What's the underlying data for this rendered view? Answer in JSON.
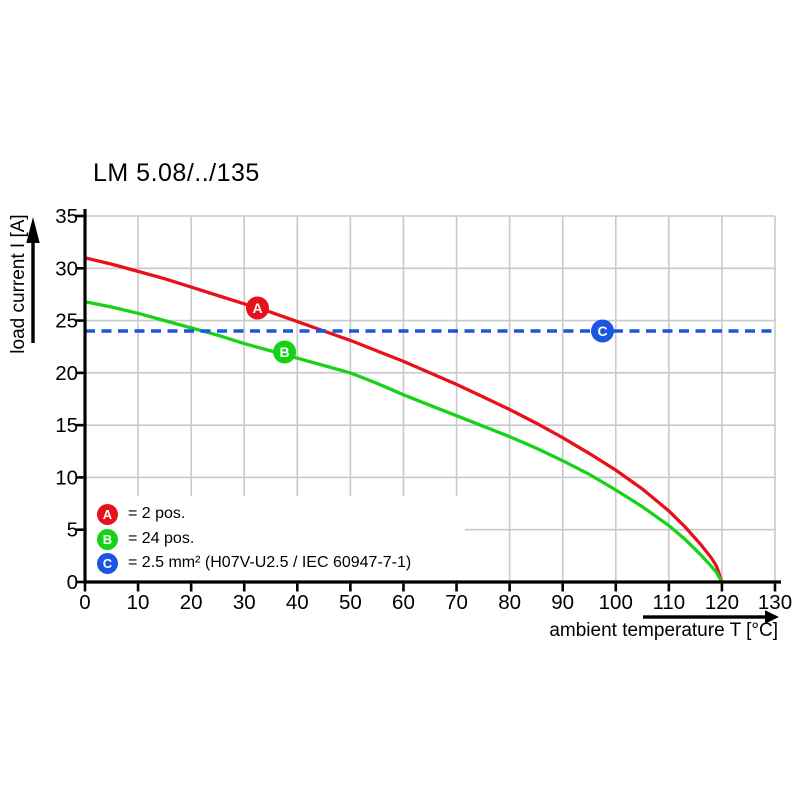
{
  "chart_data": {
    "type": "line",
    "title": "LM 5.08/../135",
    "xlabel": "ambient temperature T [°C]",
    "ylabel": "load current I [A]",
    "xlim": [
      0,
      130
    ],
    "ylim": [
      0,
      35
    ],
    "x_ticks": [
      0,
      10,
      20,
      30,
      40,
      50,
      60,
      70,
      80,
      90,
      100,
      110,
      120,
      130
    ],
    "y_ticks": [
      0,
      5,
      10,
      15,
      20,
      25,
      30,
      35
    ],
    "grid": true,
    "legend_position": "inside-bottom-left",
    "axis_color": "#000000",
    "grid_color": "#c9c9c9",
    "series": [
      {
        "id": "A",
        "name": "2 pos.",
        "color": "#e8111b",
        "line_style": "solid",
        "marker": {
          "letter": "A",
          "x": 32.5,
          "y": 26.2
        },
        "points": [
          [
            0,
            31.0
          ],
          [
            5,
            30.4
          ],
          [
            10,
            29.7
          ],
          [
            15,
            29.0
          ],
          [
            20,
            28.2
          ],
          [
            25,
            27.4
          ],
          [
            30,
            26.6
          ],
          [
            35,
            25.8
          ],
          [
            40,
            24.9
          ],
          [
            45,
            24.0
          ],
          [
            50,
            23.1
          ],
          [
            55,
            22.1
          ],
          [
            60,
            21.1
          ],
          [
            65,
            20.0
          ],
          [
            70,
            18.9
          ],
          [
            75,
            17.7
          ],
          [
            80,
            16.5
          ],
          [
            85,
            15.2
          ],
          [
            90,
            13.8
          ],
          [
            95,
            12.3
          ],
          [
            100,
            10.7
          ],
          [
            105,
            8.9
          ],
          [
            110,
            6.8
          ],
          [
            113,
            5.3
          ],
          [
            116,
            3.6
          ],
          [
            118,
            2.3
          ],
          [
            119,
            1.5
          ],
          [
            120,
            0
          ]
        ]
      },
      {
        "id": "B",
        "name": "24 pos.",
        "color": "#17d317",
        "line_style": "solid",
        "marker": {
          "letter": "B",
          "x": 37.6,
          "y": 22.0
        },
        "points": [
          [
            0,
            26.8
          ],
          [
            5,
            26.3
          ],
          [
            10,
            25.7
          ],
          [
            15,
            25.0
          ],
          [
            20,
            24.3
          ],
          [
            25,
            23.6
          ],
          [
            30,
            22.8
          ],
          [
            35,
            22.1
          ],
          [
            40,
            21.4
          ],
          [
            45,
            20.7
          ],
          [
            50,
            20.0
          ],
          [
            55,
            19.0
          ],
          [
            60,
            17.9
          ],
          [
            65,
            16.9
          ],
          [
            70,
            15.9
          ],
          [
            75,
            14.9
          ],
          [
            80,
            13.9
          ],
          [
            85,
            12.8
          ],
          [
            90,
            11.6
          ],
          [
            95,
            10.3
          ],
          [
            100,
            8.8
          ],
          [
            105,
            7.2
          ],
          [
            110,
            5.4
          ],
          [
            113,
            4.1
          ],
          [
            116,
            2.6
          ],
          [
            118,
            1.5
          ],
          [
            119,
            0.9
          ],
          [
            120,
            0
          ]
        ]
      },
      {
        "id": "C",
        "name": "2.5 mm² (H07V-U2.5 / IEC 60947-7-1)",
        "color": "#1b55e0",
        "line_style": "dashed",
        "marker": {
          "letter": "C",
          "x": 97.5,
          "y": 24.0
        },
        "points": [
          [
            0,
            24
          ],
          [
            130,
            24
          ]
        ]
      }
    ],
    "legend": [
      {
        "letter": "A",
        "color": "#e8111b",
        "label": "= 2 pos."
      },
      {
        "letter": "B",
        "color": "#17d317",
        "label": "= 24 pos."
      },
      {
        "letter": "C",
        "color": "#1b55e0",
        "label": "= 2.5 mm² (H07V-U2.5 / IEC 60947-7-1)"
      }
    ]
  }
}
